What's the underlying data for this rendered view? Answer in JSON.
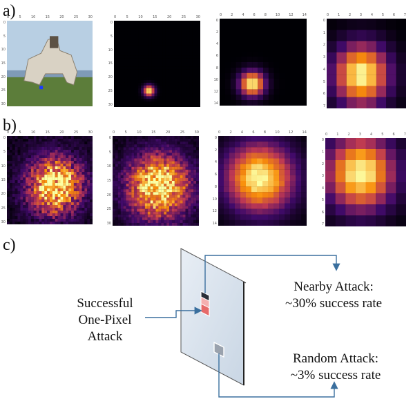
{
  "labels": {
    "a": "a)",
    "b": "b)",
    "c": "c)"
  },
  "row_a": [
    {
      "id": "a1",
      "kind": "photo",
      "top_ticks": [
        "0",
        "5",
        "10",
        "15",
        "20",
        "25",
        "30"
      ],
      "left_ticks": [
        "0",
        "5",
        "10",
        "15",
        "20",
        "25",
        "30"
      ]
    },
    {
      "id": "a2",
      "kind": "heatmap",
      "grid": 32,
      "top_ticks": [
        "0",
        "5",
        "10",
        "15",
        "20",
        "25",
        "30"
      ],
      "left_ticks": [
        "0",
        "5",
        "10",
        "15",
        "20",
        "25",
        "30"
      ],
      "peak": [
        13,
        26
      ],
      "spread": 1.4
    },
    {
      "id": "a3",
      "kind": "heatmap",
      "grid": 16,
      "top_ticks": [
        "0",
        "2",
        "4",
        "6",
        "8",
        "10",
        "12",
        "14"
      ],
      "left_ticks": [
        "0",
        "2",
        "4",
        "6",
        "8",
        "10",
        "12",
        "14"
      ],
      "peak": [
        6,
        12
      ],
      "spread": 1.6
    },
    {
      "id": "a4",
      "kind": "heatmap",
      "grid": 8,
      "top_ticks": [
        "0",
        "1",
        "2",
        "3",
        "4",
        "5",
        "6",
        "7"
      ],
      "left_ticks": [
        "0",
        "1",
        "2",
        "3",
        "4",
        "5",
        "6",
        "7"
      ],
      "peak": [
        3.5,
        5
      ],
      "spread": 1.9
    }
  ],
  "row_b": [
    {
      "id": "b1",
      "kind": "heatmap",
      "grid": 32,
      "top_ticks": [
        "0",
        "5",
        "10",
        "15",
        "20",
        "25",
        "30"
      ],
      "left_ticks": [
        "0",
        "5",
        "10",
        "15",
        "20",
        "25",
        "30"
      ],
      "peak": [
        18,
        18
      ],
      "spread": 7,
      "noise": 0.45
    },
    {
      "id": "b2",
      "kind": "heatmap",
      "grid": 32,
      "top_ticks": [
        "0",
        "5",
        "10",
        "15",
        "20",
        "25",
        "30"
      ],
      "left_ticks": [
        "0",
        "5",
        "10",
        "15",
        "20",
        "25",
        "30"
      ],
      "peak": [
        17,
        18
      ],
      "spread": 8,
      "noise": 0.35
    },
    {
      "id": "b3",
      "kind": "heatmap",
      "grid": 16,
      "top_ticks": [
        "0",
        "2",
        "4",
        "6",
        "8",
        "10",
        "12",
        "14"
      ],
      "left_ticks": [
        "0",
        "2",
        "4",
        "6",
        "8",
        "10",
        "12",
        "14"
      ],
      "peak": [
        7.5,
        7.5
      ],
      "spread": 4.2,
      "noise": 0.05
    },
    {
      "id": "b4",
      "kind": "heatmap",
      "grid": 8,
      "top_ticks": [
        "0",
        "1",
        "2",
        "3",
        "4",
        "5",
        "6",
        "7"
      ],
      "left_ticks": [
        "0",
        "1",
        "2",
        "3",
        "4",
        "5",
        "6",
        "7"
      ],
      "peak": [
        3.5,
        3.2
      ],
      "spread": 2.3,
      "noise": 0.02
    }
  ],
  "diagram": {
    "left_label": [
      "Successful",
      "One-Pixel",
      "Attack"
    ],
    "nearby": [
      "Nearby Attack:",
      "~30% success rate"
    ],
    "random": [
      "Random Attack:",
      "~3% success rate"
    ]
  },
  "colors": {
    "arrow": "#3a6f9e",
    "plane_fill": "#dfe7f0",
    "plane_stroke": "#555555"
  }
}
